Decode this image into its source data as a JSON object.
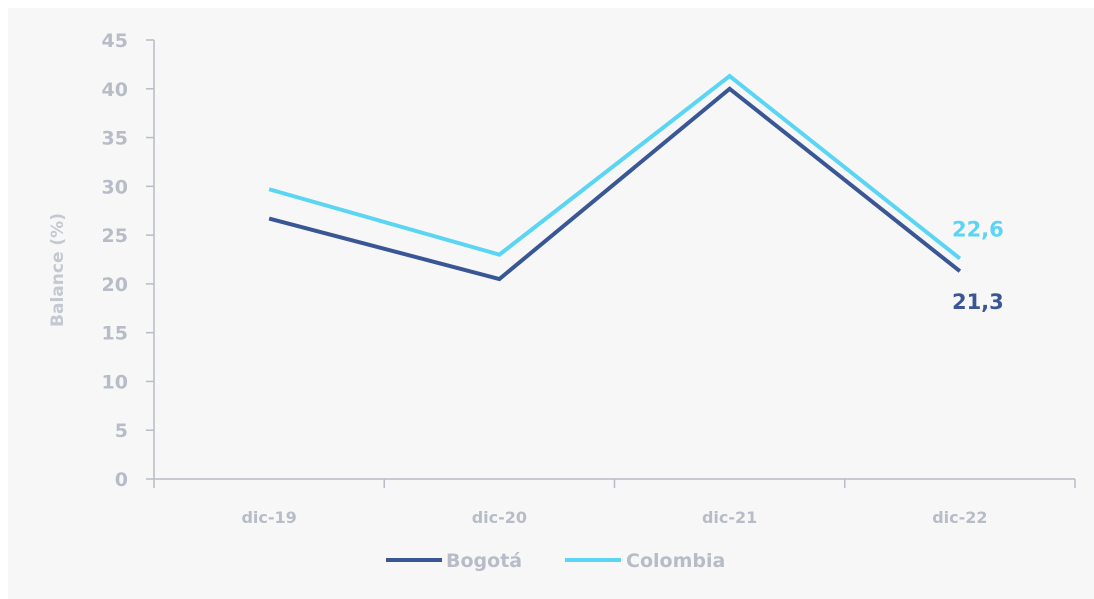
{
  "chart_data": {
    "type": "line",
    "ylabel": "Balance (%)",
    "ylim": [
      0,
      45
    ],
    "yticks": [
      0,
      5,
      10,
      15,
      20,
      25,
      30,
      35,
      40,
      45
    ],
    "categories": [
      "dic-19",
      "dic-20",
      "dic-21",
      "dic-22"
    ],
    "series": [
      {
        "name": "Bogotá",
        "values": [
          26.7,
          20.5,
          40.0,
          21.3
        ],
        "color": "#3a5795",
        "end_label": "21,3"
      },
      {
        "name": "Colombia",
        "values": [
          29.7,
          23.0,
          41.3,
          22.6
        ],
        "color": "#5ad5f3",
        "end_label": "22,6"
      }
    ],
    "axis_color": "#b7bcc7",
    "grid": false,
    "legend_position": "bottom"
  }
}
